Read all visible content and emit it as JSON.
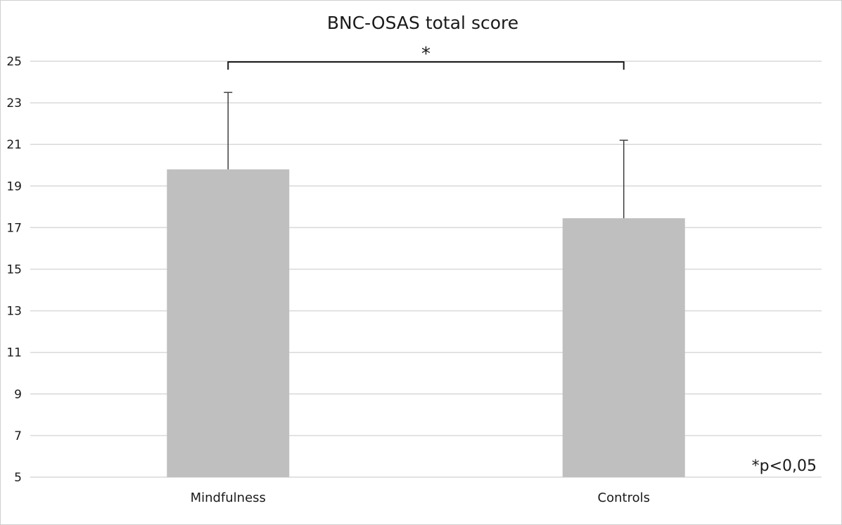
{
  "chart_data": {
    "type": "bar",
    "title": "BNC-OSAS total score",
    "categories": [
      "Mindfulness",
      "Controls"
    ],
    "values": [
      19.8,
      17.45
    ],
    "error_upper": [
      23.5,
      21.2
    ],
    "ylim": [
      5,
      25
    ],
    "yticks": [
      5,
      7,
      9,
      11,
      13,
      15,
      17,
      19,
      21,
      23,
      25
    ],
    "grid": true,
    "bar_color": "#bfbfbf",
    "grid_color": "#d9d9d9",
    "significance": {
      "between": [
        "Mindfulness",
        "Controls"
      ],
      "marker": "*"
    },
    "annotation": "*p<0,05"
  }
}
